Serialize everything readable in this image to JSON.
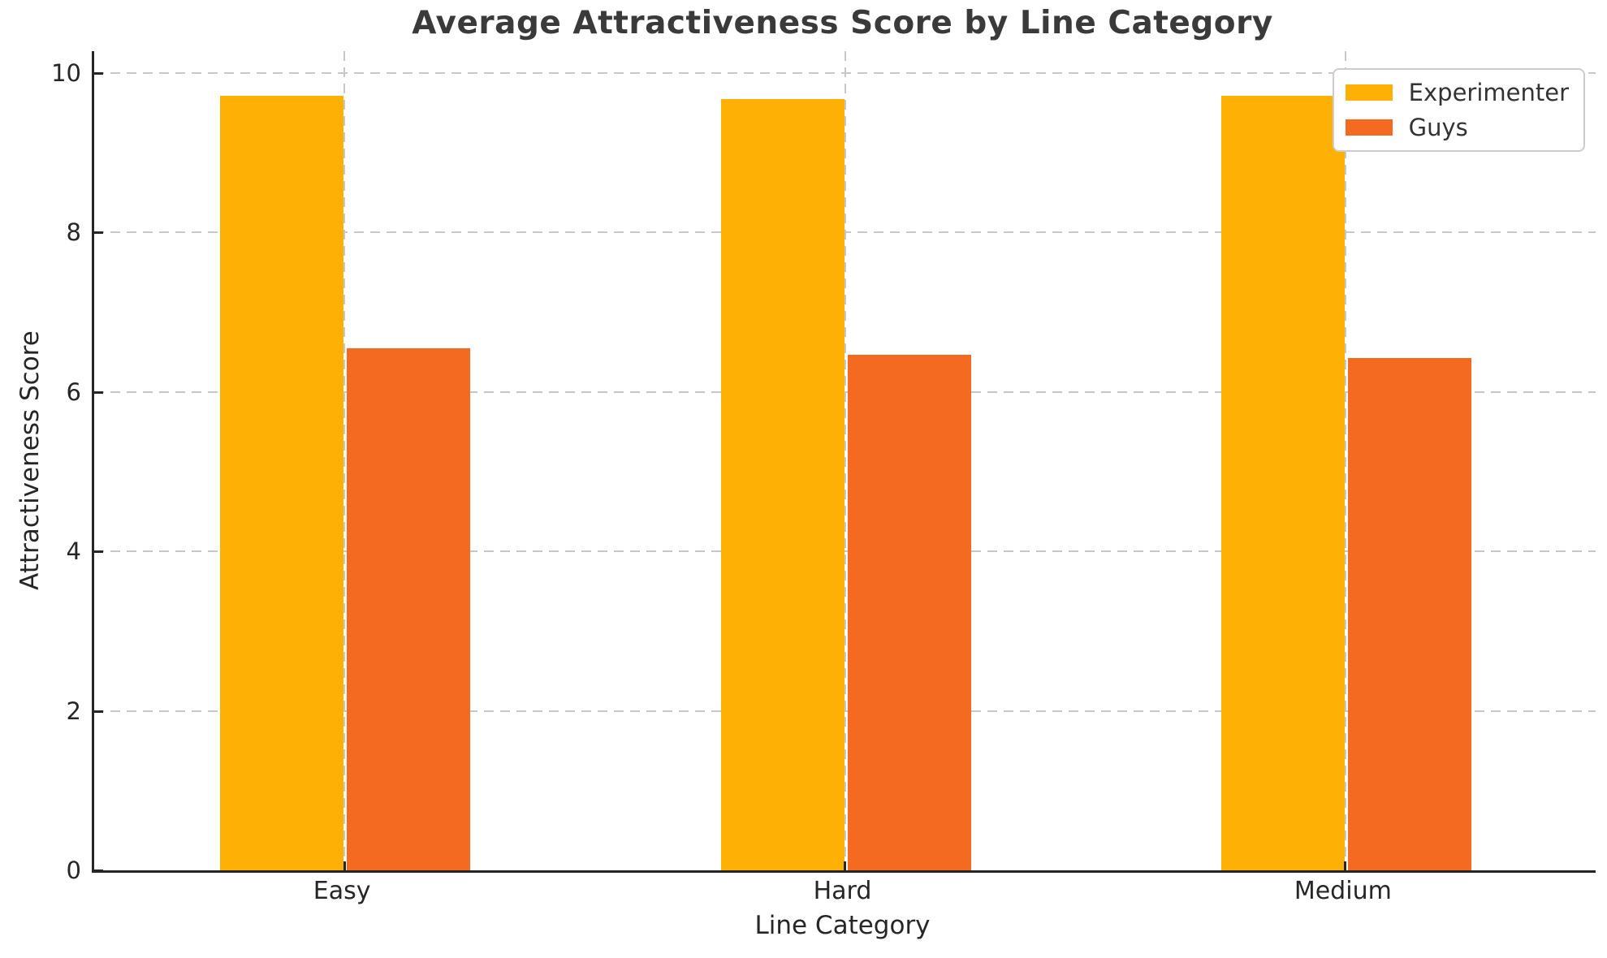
{
  "title": "Average Attractiveness Score by Line Category",
  "chart_data": {
    "type": "bar",
    "title": "Average Attractiveness Score by Line Category",
    "categories": [
      "Easy",
      "Hard",
      "Medium"
    ],
    "series": [
      {
        "name": "Experimenter",
        "color": "#FFB005",
        "values": [
          9.72,
          9.67,
          9.71
        ]
      },
      {
        "name": "Guys",
        "color": "#F36A20",
        "values": [
          6.55,
          6.47,
          6.43
        ]
      }
    ],
    "xlabel": "Line Category",
    "ylabel": "Attractiveness Score",
    "ylim": [
      0,
      10.3
    ],
    "yticks": [
      0,
      2,
      4,
      6,
      8,
      10
    ],
    "grid": "dashed, both axes",
    "legend_position": "upper right",
    "colors": {
      "spine": "#262626",
      "gridline": "#c7c7c7",
      "title_text": "#3a3a3a"
    }
  }
}
